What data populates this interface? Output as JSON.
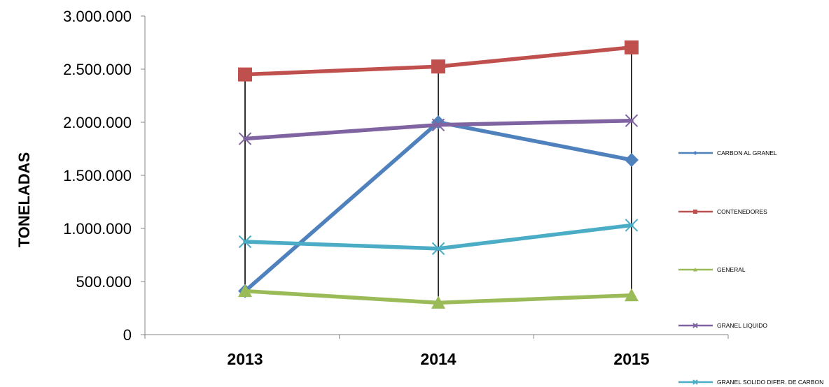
{
  "chart_data": {
    "type": "line",
    "title": "",
    "xlabel": "",
    "ylabel": "TONELADAS",
    "categories": [
      "2013",
      "2014",
      "2015"
    ],
    "ylim": [
      0,
      3000000
    ],
    "yticks": [
      "0",
      "500.000",
      "1.000.000",
      "1.500.000",
      "2.000.000",
      "2.500.000",
      "3.000.000"
    ],
    "grid": false,
    "drop_lines": true,
    "legend_position": "right",
    "series": [
      {
        "name": "CARBON AL GRANEL",
        "color": "#4F81BD",
        "marker": "diamond",
        "values": [
          410000,
          2000000,
          1645000
        ]
      },
      {
        "name": "CONTENEDORES",
        "color": "#C0504D",
        "marker": "square",
        "values": [
          2450000,
          2525000,
          2705000
        ]
      },
      {
        "name": "GENERAL",
        "color": "#9BBB59",
        "marker": "triangle",
        "values": [
          410000,
          300000,
          370000
        ]
      },
      {
        "name": "GRANEL LIQUIDO",
        "color": "#8064A2",
        "marker": "x",
        "values": [
          1845000,
          1975000,
          2015000
        ]
      },
      {
        "name": "GRANEL SOLIDO DIFER. DE CARBON",
        "color": "#4BACC6",
        "marker": "x",
        "values": [
          875000,
          810000,
          1030000
        ]
      }
    ]
  }
}
